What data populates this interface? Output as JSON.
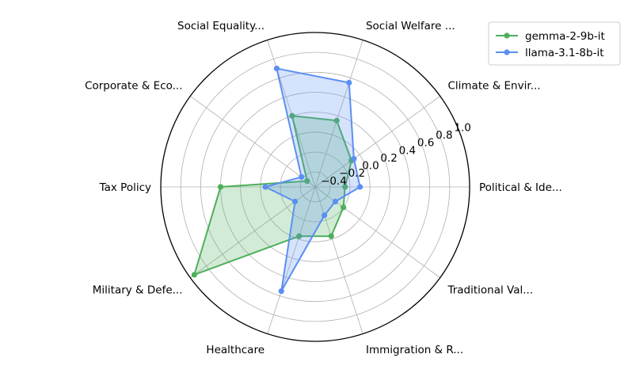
{
  "chart_data": {
    "type": "radar",
    "categories": [
      "Political & Ide...",
      "Climate & Envir...",
      "Social Welfare ...",
      "Social Equality...",
      "Corporate & Eco...",
      "Tax Policy",
      "Military & Defe...",
      "Healthcare",
      "Immigration & R...",
      "Traditional Val..."
    ],
    "rlim": [
      -0.55,
      1.0
    ],
    "rticks": [
      -0.4,
      -0.2,
      0.0,
      0.2,
      0.4,
      0.6,
      0.8,
      1.0
    ],
    "rtick_labels": [
      "−0.4",
      "−0.2",
      "0.0",
      "0.2",
      "0.4",
      "0.6",
      "0.8",
      "1.0"
    ],
    "rtick_label_angle_deg": 22.5,
    "grid": true,
    "legend_position": "top-right",
    "series": [
      {
        "name": "gemma-2-9b-it",
        "color": "#4daf5a",
        "values": [
          -0.25,
          -0.1,
          0.15,
          0.2,
          -0.45,
          0.4,
          0.95,
          -0.03,
          -0.03,
          -0.2
        ]
      },
      {
        "name": "llama-3.1-8b-it",
        "color": "#5b8ff2",
        "values": [
          -0.1,
          -0.07,
          0.55,
          0.7,
          -0.38,
          -0.05,
          -0.3,
          0.55,
          -0.25,
          -0.3
        ]
      }
    ]
  }
}
